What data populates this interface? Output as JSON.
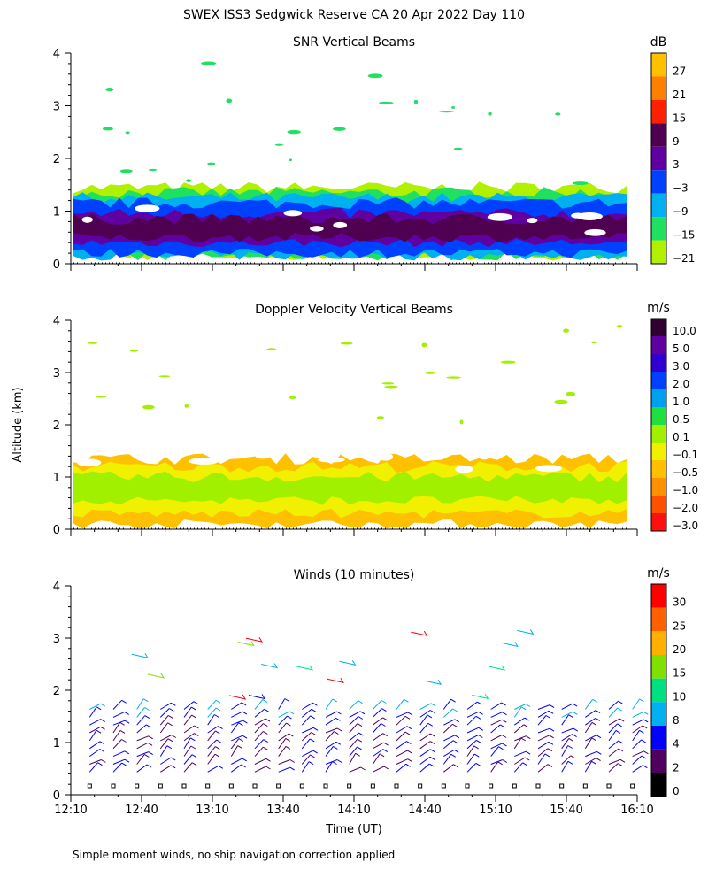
{
  "title": "SWEX ISS3 Sedgwick Reserve CA  20 Apr 2022 Day 110",
  "ylabel": "Altitude (km)",
  "footnote": "Simple moment winds, no ship navigation correction applied",
  "chart_data": [
    {
      "type": "heatmap",
      "title": "SNR Vertical Beams",
      "xlabel": "",
      "ylabel": "Altitude (km)",
      "yticks": [
        "0",
        "1",
        "2",
        "3",
        "4"
      ],
      "ylim": [
        0,
        4
      ],
      "xlim": [
        "12:10",
        "16:10"
      ],
      "colorbar": {
        "unit": "dB",
        "labels": [
          "27",
          "21",
          "15",
          "9",
          "3",
          "−3",
          "−9",
          "−15",
          "−21"
        ],
        "colors": [
          "#ffc000",
          "#ff8000",
          "#ff2000",
          "#500050",
          "#6000a0",
          "#0040ff",
          "#00b0f0",
          "#20e060",
          "#b0f000"
        ]
      },
      "layers": [
        {
          "label": "-21",
          "color": "#b0f000",
          "from": 0.15,
          "to": 1.45
        },
        {
          "label": "-15",
          "color": "#20e060",
          "from": 0.15,
          "to": 1.35
        },
        {
          "label": "-9",
          "color": "#00b0f0",
          "from": 0.15,
          "to": 1.25
        },
        {
          "label": "-3",
          "color": "#0040ff",
          "from": 0.2,
          "to": 1.15
        },
        {
          "label": "3",
          "color": "#6000a0",
          "from": 0.4,
          "to": 0.95
        },
        {
          "label": "9",
          "color": "#500050",
          "from": 0.5,
          "to": 0.85
        }
      ]
    },
    {
      "type": "heatmap",
      "title": "Doppler Velocity Vertical Beams",
      "xlabel": "",
      "ylabel": "Altitude (km)",
      "yticks": [
        "0",
        "1",
        "2",
        "3",
        "4"
      ],
      "ylim": [
        0,
        4
      ],
      "xlim": [
        "12:10",
        "16:10"
      ],
      "colorbar": {
        "unit": "m/s",
        "labels": [
          "10.0",
          "5.0",
          "3.0",
          "2.0",
          "1.0",
          "0.5",
          "0.1",
          "−0.1",
          "−0.5",
          "−1.0",
          "−2.0",
          "−3.0"
        ],
        "colors": [
          "#300030",
          "#6000a0",
          "#3000d0",
          "#0040ff",
          "#00a0f0",
          "#20e040",
          "#a0f000",
          "#f0f000",
          "#ffc000",
          "#ff9000",
          "#ff5000",
          "#ff1010"
        ]
      },
      "layers": [
        {
          "label": "-0.5",
          "color": "#ffc000",
          "from": 0.1,
          "to": 1.35
        },
        {
          "label": "-0.1",
          "color": "#f0f000",
          "from": 0.3,
          "to": 1.2
        },
        {
          "label": "0.1",
          "color": "#a0f000",
          "from": 0.55,
          "to": 1.0
        }
      ]
    },
    {
      "type": "barbs",
      "title": "Winds (10 minutes)",
      "xlabel": "Time (UT)",
      "ylabel": "Altitude (km)",
      "yticks": [
        "0",
        "1",
        "2",
        "3",
        "4"
      ],
      "ylim": [
        0,
        4
      ],
      "xticks": [
        "12:10",
        "12:40",
        "13:10",
        "13:40",
        "14:10",
        "14:40",
        "15:10",
        "15:40",
        "16:10"
      ],
      "xlim": [
        "12:10",
        "16:10"
      ],
      "colorbar": {
        "unit": "m/s",
        "labels": [
          "30",
          "25",
          "20",
          "15",
          "10",
          "8",
          "4",
          "2",
          "0"
        ],
        "colors": [
          "#ff0000",
          "#ff6000",
          "#ffb000",
          "#80e000",
          "#00e080",
          "#00b0f0",
          "#0000ff",
          "#500060",
          "#000000"
        ]
      },
      "profile_times_min": [
        8,
        18,
        28,
        38,
        48,
        58,
        68,
        78,
        88,
        98,
        108,
        118,
        128,
        138,
        148,
        158,
        168,
        178,
        188,
        198,
        208,
        218,
        228,
        238
      ],
      "barb_altitudes_km": [
        0.3,
        0.45,
        0.6,
        0.75,
        0.9,
        1.05,
        1.2,
        1.35,
        1.5
      ],
      "upper_barbs_km": [
        2.6,
        3.1,
        2.8
      ]
    }
  ]
}
